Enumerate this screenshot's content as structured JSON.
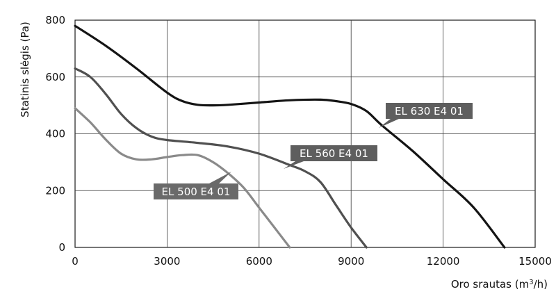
{
  "chart_data": {
    "type": "line",
    "title": "",
    "xlabel": "Oro srautas (m³/h)",
    "xlabel_main": "Oro srautas (m",
    "xlabel_sup": "3",
    "xlabel_tail": "/h)",
    "ylabel": "Statinis slėgis (Pa)",
    "xlim": [
      0,
      15000
    ],
    "ylim": [
      0,
      800
    ],
    "xticks": [
      0,
      3000,
      6000,
      9000,
      12000,
      15000
    ],
    "yticks": [
      0,
      200,
      400,
      600,
      800
    ],
    "grid": true,
    "legend": "inline labels",
    "series": [
      {
        "name": "EL 630  E4 01",
        "color": "#141414",
        "x": [
          0,
          1000,
          2000,
          3000,
          3500,
          4000,
          4500,
          5000,
          6000,
          7000,
          8000,
          8500,
          9000,
          9500,
          10000,
          11000,
          12000,
          13000,
          14000
        ],
        "y": [
          780,
          710,
          630,
          545,
          515,
          502,
          500,
          502,
          510,
          518,
          520,
          515,
          505,
          480,
          430,
          340,
          240,
          140,
          0
        ]
      },
      {
        "name": "EL 560  E4 01",
        "color": "#505050",
        "x": [
          0,
          500,
          1000,
          1500,
          2000,
          2500,
          3000,
          4000,
          5000,
          6000,
          7000,
          7500,
          8000,
          8500,
          9000,
          9500
        ],
        "y": [
          630,
          600,
          540,
          470,
          420,
          390,
          378,
          368,
          355,
          330,
          290,
          268,
          230,
          150,
          70,
          0
        ]
      },
      {
        "name": "EL 500 E4 01",
        "color": "#8a8a8a",
        "x": [
          0,
          500,
          1000,
          1500,
          2000,
          2500,
          3000,
          3500,
          4000,
          4500,
          5000,
          5500,
          6000,
          6500,
          7000
        ],
        "y": [
          490,
          440,
          380,
          330,
          310,
          310,
          318,
          325,
          325,
          300,
          260,
          210,
          140,
          70,
          0
        ]
      }
    ]
  }
}
